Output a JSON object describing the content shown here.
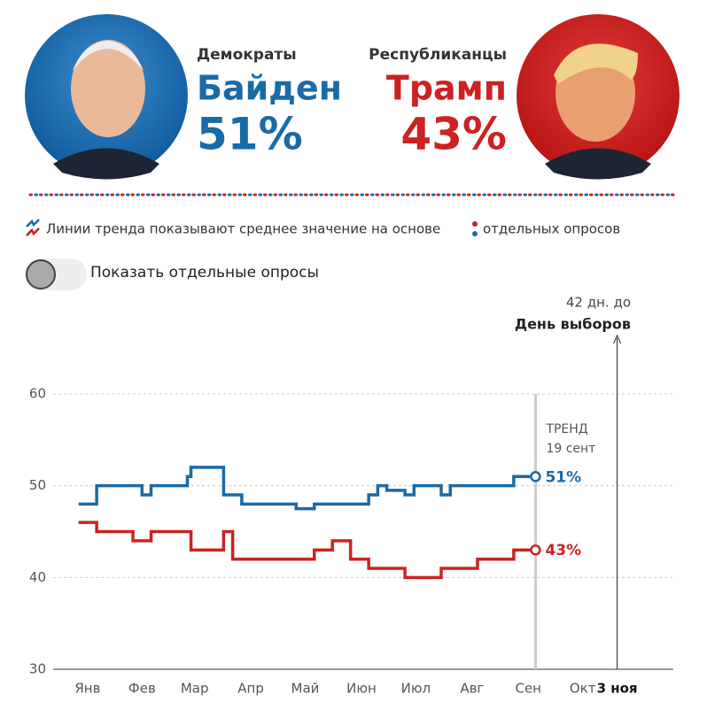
{
  "header": {
    "dem": {
      "party": "Демократы",
      "name": "Байден",
      "percent": "51%"
    },
    "rep": {
      "party": "Республиканцы",
      "name": "Трамп",
      "percent": "43%"
    }
  },
  "legend": {
    "text1": "Линии тренда показывают среднее значение на основе",
    "text2": "отдельных опросов"
  },
  "toggle": {
    "label": "Показать отдельные опросы"
  },
  "chart_data": {
    "type": "line",
    "annotations": {
      "days_left": "42 дн. до",
      "election": "День выборов",
      "trend": "ТРЕНД",
      "trend_date": "19 сент"
    },
    "x": [
      10,
      14,
      20,
      30,
      40,
      45,
      50,
      60,
      70,
      72,
      75,
      80,
      90,
      95,
      100,
      110,
      120,
      130,
      140,
      150,
      160,
      170,
      175,
      180,
      190,
      195,
      200,
      210,
      215,
      220,
      230,
      240,
      245,
      250,
      255,
      262
    ],
    "series": [
      {
        "name": "Байден",
        "color": "#1a6aa8",
        "end_label": "51%",
        "values": [
          48,
          48,
          50,
          50,
          50,
          49,
          50,
          50,
          51,
          52,
          52,
          52,
          49,
          49,
          48,
          48,
          48,
          47.5,
          48,
          48,
          48,
          49,
          50,
          49.5,
          49,
          50,
          50,
          49,
          50,
          50,
          50,
          50,
          50,
          51,
          51,
          51
        ]
      },
      {
        "name": "Трамп",
        "color": "#cc2222",
        "end_label": "43%",
        "values": [
          46,
          46,
          45,
          45,
          44,
          44,
          45,
          45,
          45,
          43,
          43,
          43,
          45,
          42,
          42,
          42,
          42,
          42,
          43,
          44,
          42,
          41,
          41,
          41,
          40,
          40,
          40,
          41,
          41,
          41,
          42,
          42,
          42,
          43,
          43,
          43
        ]
      }
    ],
    "xlim": [
      -4,
      338
    ],
    "xticks": [
      {
        "value": 15,
        "label": "Янв"
      },
      {
        "value": 45,
        "label": "Фев"
      },
      {
        "value": 74,
        "label": "Мар"
      },
      {
        "value": 105,
        "label": "Апр"
      },
      {
        "value": 135,
        "label": "Май"
      },
      {
        "value": 166,
        "label": "Июн"
      },
      {
        "value": 196,
        "label": "Июл"
      },
      {
        "value": 227,
        "label": "Авг"
      },
      {
        "value": 258,
        "label": "Сен"
      },
      {
        "value": 288,
        "label": "Окт"
      },
      {
        "value": 307,
        "label": "3 ноя"
      }
    ],
    "ylim": [
      30,
      60
    ],
    "yticks": [
      30,
      40,
      50,
      60
    ],
    "grid": true
  }
}
